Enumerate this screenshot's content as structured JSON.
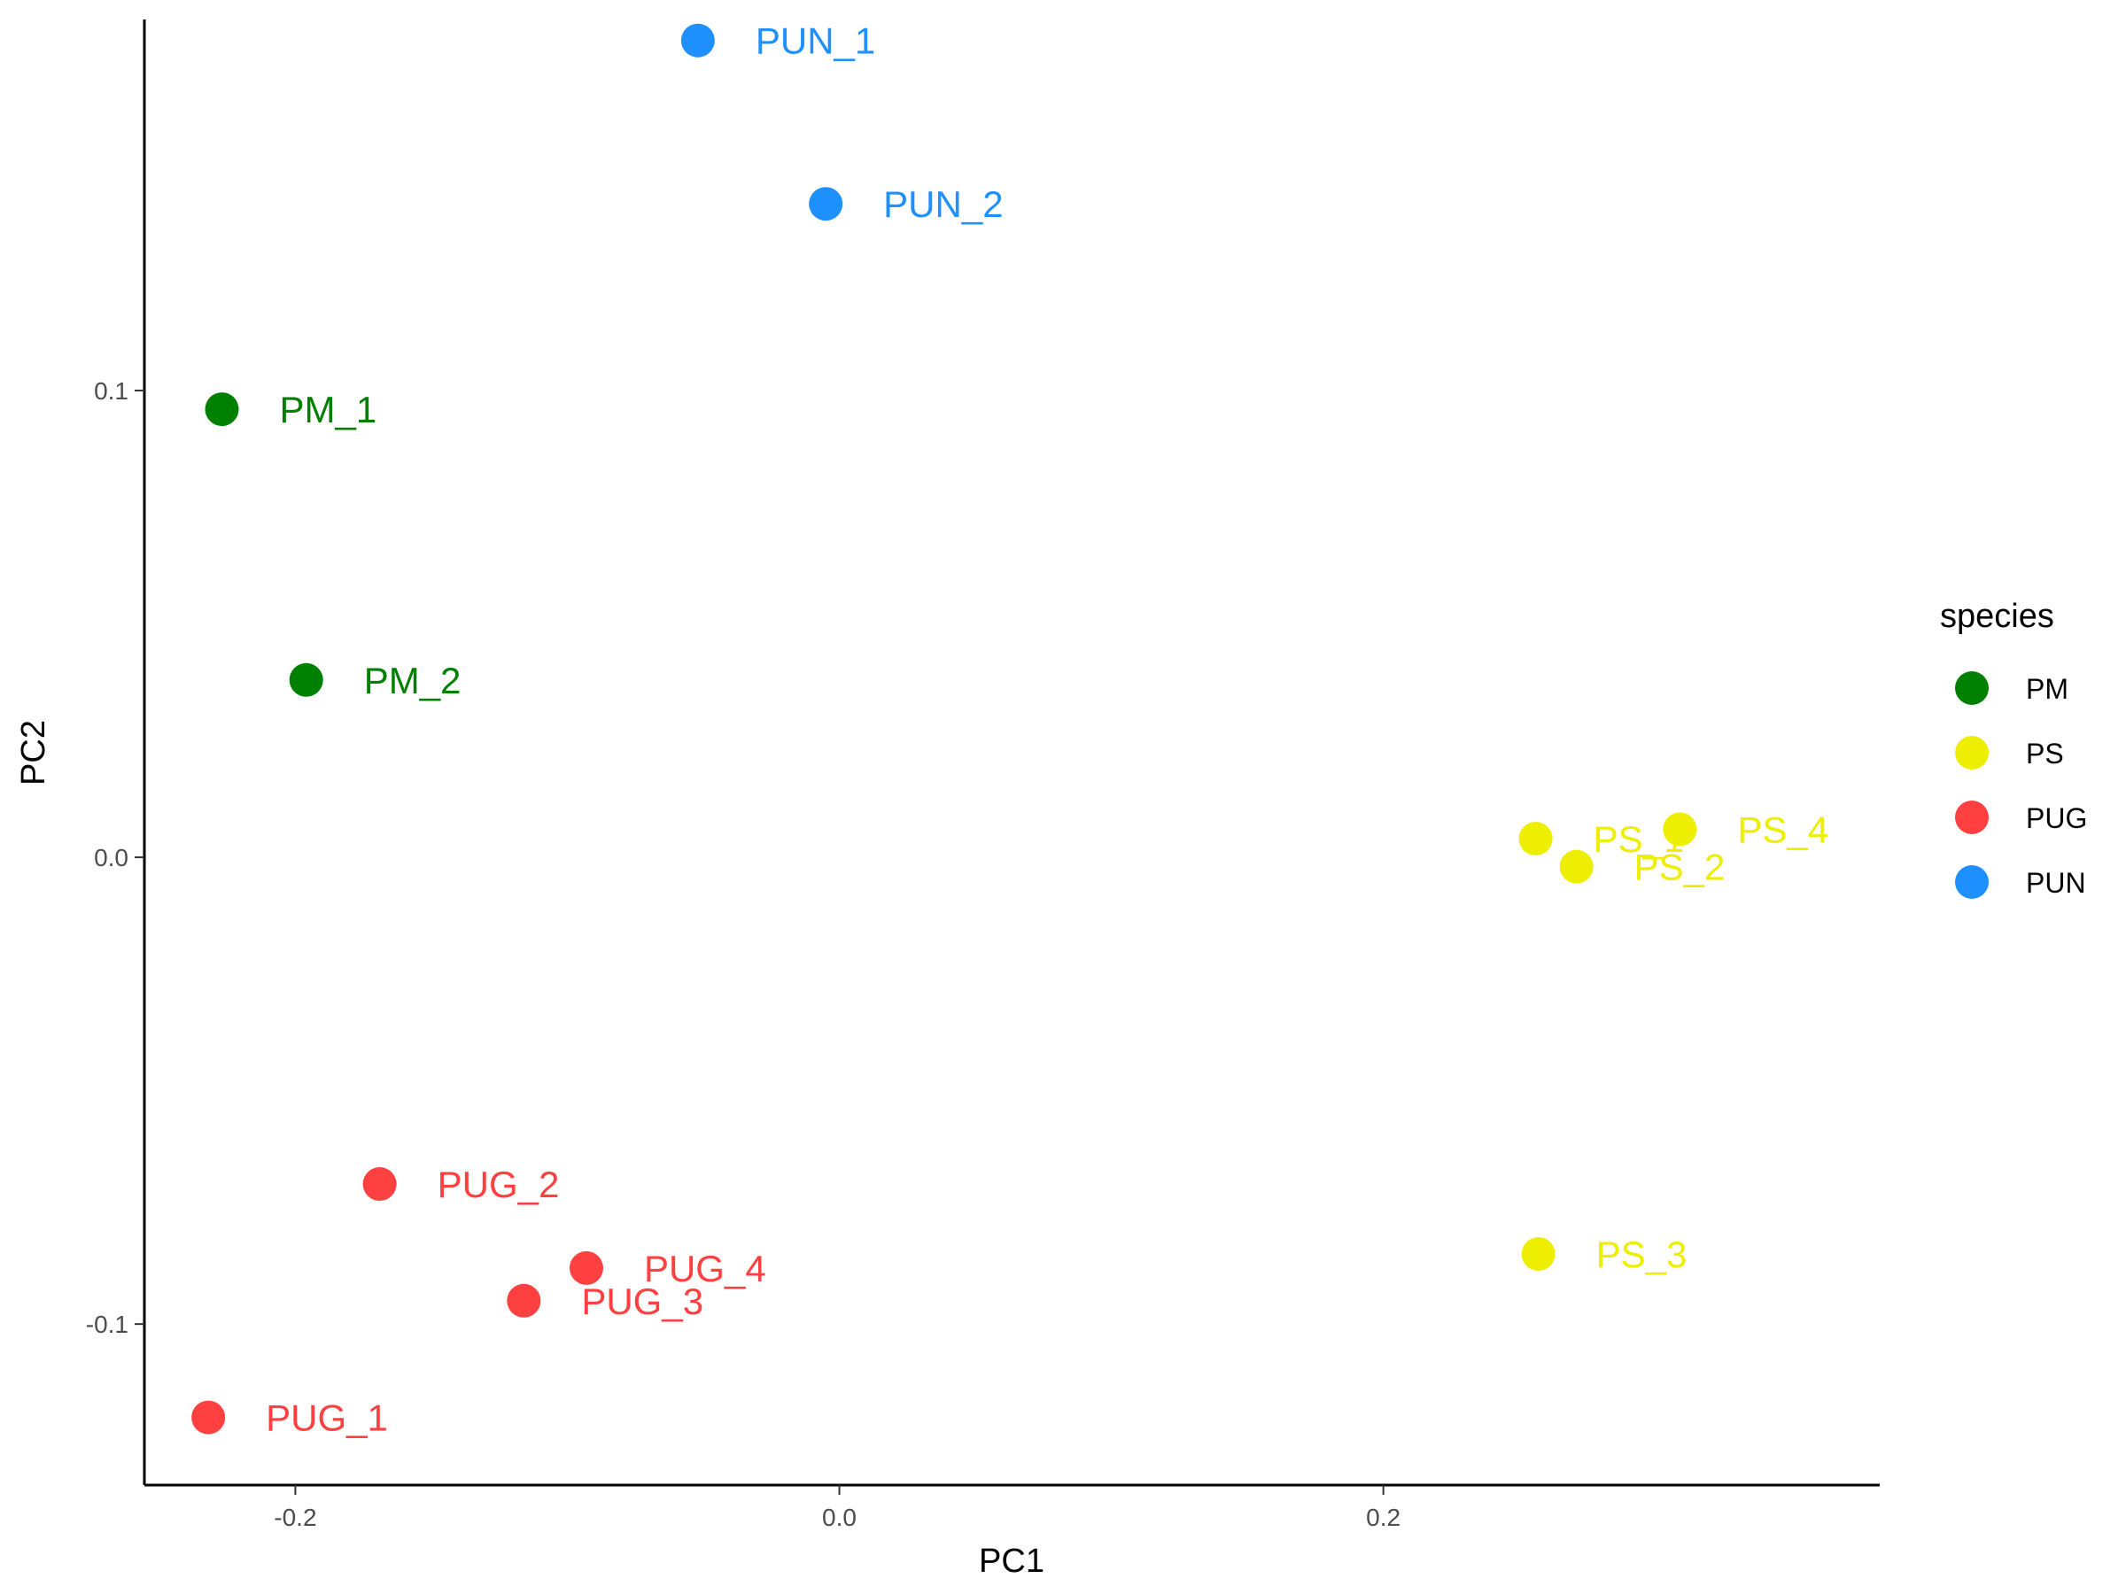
{
  "chart_data": {
    "type": "scatter",
    "title": "",
    "xlabel": "PC1",
    "ylabel": "PC2",
    "xlim": [
      -0.2555,
      0.3825
    ],
    "ylim": [
      -0.1345,
      0.1795
    ],
    "x_ticks": [
      {
        "value": -0.2,
        "label": "-0.2"
      },
      {
        "value": 0.0,
        "label": "0.0"
      },
      {
        "value": 0.2,
        "label": "0.2"
      }
    ],
    "y_ticks": [
      {
        "value": -0.1,
        "label": "-0.1"
      },
      {
        "value": 0.0,
        "label": "0.0"
      },
      {
        "value": 0.1,
        "label": "0.1"
      }
    ],
    "grid": false,
    "legend": {
      "title": "species",
      "placement": "right",
      "entries": [
        {
          "label": "PM",
          "color": "#008000"
        },
        {
          "label": "PS",
          "color": "#EEEE00"
        },
        {
          "label": "PUG",
          "color": "#FF4040"
        },
        {
          "label": "PUN",
          "color": "#1E90FF"
        }
      ]
    },
    "series": [
      {
        "name": "PM",
        "color": "#008000",
        "points": [
          {
            "label": "PM_1",
            "x": -0.227,
            "y": 0.096
          },
          {
            "label": "PM_2",
            "x": -0.196,
            "y": 0.038
          }
        ]
      },
      {
        "name": "PS",
        "color": "#EEEE00",
        "points": [
          {
            "label": "PS_1",
            "x": 0.256,
            "y": 0.004
          },
          {
            "label": "PS_2",
            "x": 0.271,
            "y": -0.002
          },
          {
            "label": "PS_3",
            "x": 0.257,
            "y": -0.085
          },
          {
            "label": "PS_4",
            "x": 0.309,
            "y": 0.006
          }
        ]
      },
      {
        "name": "PUG",
        "color": "#FF4040",
        "points": [
          {
            "label": "PUG_1",
            "x": -0.232,
            "y": -0.12
          },
          {
            "label": "PUG_2",
            "x": -0.169,
            "y": -0.07
          },
          {
            "label": "PUG_3",
            "x": -0.116,
            "y": -0.095
          },
          {
            "label": "PUG_4",
            "x": -0.093,
            "y": -0.088
          }
        ]
      },
      {
        "name": "PUN",
        "color": "#1E90FF",
        "points": [
          {
            "label": "PUN_1",
            "x": -0.052,
            "y": 0.175
          },
          {
            "label": "PUN_2",
            "x": -0.005,
            "y": 0.14
          }
        ]
      }
    ]
  }
}
